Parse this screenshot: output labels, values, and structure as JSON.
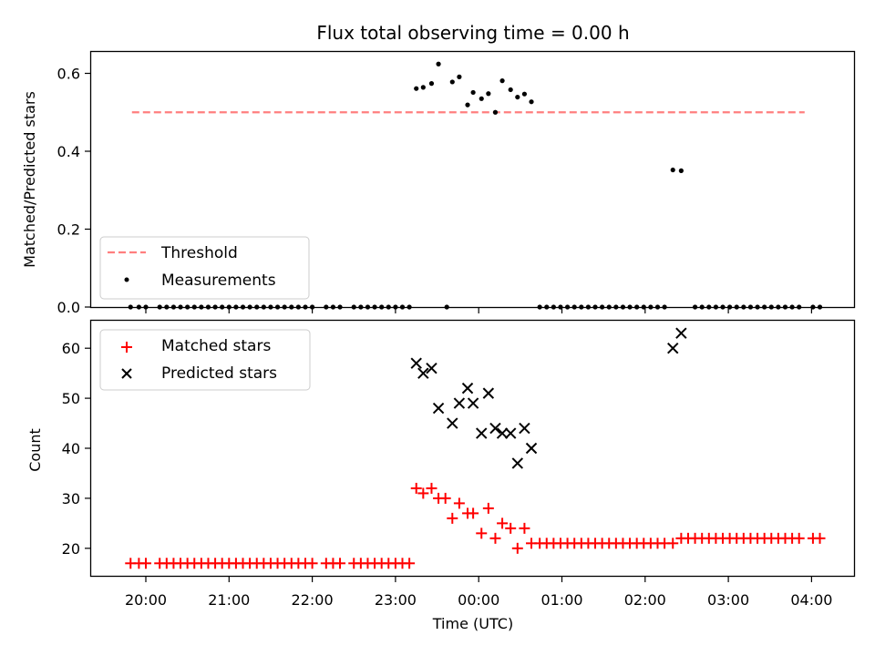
{
  "chart_data": [
    {
      "type": "scatter",
      "title": "Flux total observing time = 0.00 h",
      "xlabel": "",
      "ylabel": "Matched/Predicted stars",
      "ylim": [
        0.0,
        0.655
      ],
      "y_ticks": [
        0.0,
        0.2,
        0.4,
        0.6
      ],
      "y_tick_labels": [
        "0.0",
        "0.2",
        "0.4",
        "0.6"
      ],
      "legend_position": "lower-left",
      "threshold": {
        "name": "Threshold",
        "value": 0.5,
        "color": "#ff7f7f",
        "x_start": "19:50",
        "x_end": "03:55"
      },
      "measurements": {
        "name": "Measurements",
        "color": "#000000",
        "points": [
          {
            "x": "23:15",
            "y": 0.561
          },
          {
            "x": "23:20",
            "y": 0.564
          },
          {
            "x": "23:26",
            "y": 0.574
          },
          {
            "x": "23:31",
            "y": 0.624
          },
          {
            "x": "23:41",
            "y": 0.578
          },
          {
            "x": "23:46",
            "y": 0.591
          },
          {
            "x": "23:52",
            "y": 0.519
          },
          {
            "x": "23:56",
            "y": 0.551
          },
          {
            "x": "00:02",
            "y": 0.535
          },
          {
            "x": "00:07",
            "y": 0.548
          },
          {
            "x": "00:12",
            "y": 0.5
          },
          {
            "x": "00:17",
            "y": 0.581
          },
          {
            "x": "00:23",
            "y": 0.558
          },
          {
            "x": "00:28",
            "y": 0.539
          },
          {
            "x": "00:33",
            "y": 0.547
          },
          {
            "x": "00:38",
            "y": 0.527
          },
          {
            "x": "02:20",
            "y": 0.352
          },
          {
            "x": "02:26",
            "y": 0.35
          },
          {
            "x": "19:49",
            "y": 0.0
          },
          {
            "x": "19:55",
            "y": 0.0
          },
          {
            "x": "20:00",
            "y": 0.0
          },
          {
            "x": "20:10",
            "y": 0.0
          },
          {
            "x": "20:15",
            "y": 0.0
          },
          {
            "x": "20:20",
            "y": 0.0
          },
          {
            "x": "20:25",
            "y": 0.0
          },
          {
            "x": "20:30",
            "y": 0.0
          },
          {
            "x": "20:35",
            "y": 0.0
          },
          {
            "x": "20:40",
            "y": 0.0
          },
          {
            "x": "20:45",
            "y": 0.0
          },
          {
            "x": "20:50",
            "y": 0.0
          },
          {
            "x": "20:55",
            "y": 0.0
          },
          {
            "x": "21:00",
            "y": 0.0
          },
          {
            "x": "21:05",
            "y": 0.0
          },
          {
            "x": "21:10",
            "y": 0.0
          },
          {
            "x": "21:15",
            "y": 0.0
          },
          {
            "x": "21:20",
            "y": 0.0
          },
          {
            "x": "21:25",
            "y": 0.0
          },
          {
            "x": "21:30",
            "y": 0.0
          },
          {
            "x": "21:35",
            "y": 0.0
          },
          {
            "x": "21:40",
            "y": 0.0
          },
          {
            "x": "21:45",
            "y": 0.0
          },
          {
            "x": "21:50",
            "y": 0.0
          },
          {
            "x": "21:55",
            "y": 0.0
          },
          {
            "x": "22:00",
            "y": 0.0
          },
          {
            "x": "22:10",
            "y": 0.0
          },
          {
            "x": "22:15",
            "y": 0.0
          },
          {
            "x": "22:20",
            "y": 0.0
          },
          {
            "x": "22:30",
            "y": 0.0
          },
          {
            "x": "22:35",
            "y": 0.0
          },
          {
            "x": "22:40",
            "y": 0.0
          },
          {
            "x": "22:45",
            "y": 0.0
          },
          {
            "x": "22:50",
            "y": 0.0
          },
          {
            "x": "22:55",
            "y": 0.0
          },
          {
            "x": "23:00",
            "y": 0.0
          },
          {
            "x": "23:05",
            "y": 0.0
          },
          {
            "x": "23:10",
            "y": 0.0
          },
          {
            "x": "23:37",
            "y": 0.0
          },
          {
            "x": "00:44",
            "y": 0.0
          },
          {
            "x": "00:49",
            "y": 0.0
          },
          {
            "x": "00:54",
            "y": 0.0
          },
          {
            "x": "00:59",
            "y": 0.0
          },
          {
            "x": "01:04",
            "y": 0.0
          },
          {
            "x": "01:09",
            "y": 0.0
          },
          {
            "x": "01:14",
            "y": 0.0
          },
          {
            "x": "01:19",
            "y": 0.0
          },
          {
            "x": "01:24",
            "y": 0.0
          },
          {
            "x": "01:29",
            "y": 0.0
          },
          {
            "x": "01:34",
            "y": 0.0
          },
          {
            "x": "01:39",
            "y": 0.0
          },
          {
            "x": "01:44",
            "y": 0.0
          },
          {
            "x": "01:49",
            "y": 0.0
          },
          {
            "x": "01:54",
            "y": 0.0
          },
          {
            "x": "01:59",
            "y": 0.0
          },
          {
            "x": "02:04",
            "y": 0.0
          },
          {
            "x": "02:09",
            "y": 0.0
          },
          {
            "x": "02:14",
            "y": 0.0
          },
          {
            "x": "02:36",
            "y": 0.0
          },
          {
            "x": "02:41",
            "y": 0.0
          },
          {
            "x": "02:46",
            "y": 0.0
          },
          {
            "x": "02:51",
            "y": 0.0
          },
          {
            "x": "02:56",
            "y": 0.0
          },
          {
            "x": "03:01",
            "y": 0.0
          },
          {
            "x": "03:06",
            "y": 0.0
          },
          {
            "x": "03:11",
            "y": 0.0
          },
          {
            "x": "03:16",
            "y": 0.0
          },
          {
            "x": "03:21",
            "y": 0.0
          },
          {
            "x": "03:26",
            "y": 0.0
          },
          {
            "x": "03:31",
            "y": 0.0
          },
          {
            "x": "03:36",
            "y": 0.0
          },
          {
            "x": "03:41",
            "y": 0.0
          },
          {
            "x": "03:46",
            "y": 0.0
          },
          {
            "x": "03:51",
            "y": 0.0
          },
          {
            "x": "04:01",
            "y": 0.0
          },
          {
            "x": "04:06",
            "y": 0.0
          }
        ]
      }
    },
    {
      "type": "scatter",
      "xlabel": "Time (UTC)",
      "ylabel": "Count",
      "ylim": [
        14.5,
        65.5
      ],
      "y_ticks": [
        20,
        30,
        40,
        50,
        60
      ],
      "y_tick_labels": [
        "20",
        "30",
        "40",
        "50",
        "60"
      ],
      "x_ticks": [
        "20:00",
        "21:00",
        "22:00",
        "23:00",
        "00:00",
        "01:00",
        "02:00",
        "03:00",
        "04:00"
      ],
      "legend_position": "upper-left",
      "series": [
        {
          "name": "Matched stars",
          "marker": "plus",
          "color": "#ff0000",
          "points": [
            {
              "x": "19:49",
              "y": 17
            },
            {
              "x": "19:55",
              "y": 17
            },
            {
              "x": "20:00",
              "y": 17
            },
            {
              "x": "20:10",
              "y": 17
            },
            {
              "x": "20:15",
              "y": 17
            },
            {
              "x": "20:20",
              "y": 17
            },
            {
              "x": "20:25",
              "y": 17
            },
            {
              "x": "20:30",
              "y": 17
            },
            {
              "x": "20:35",
              "y": 17
            },
            {
              "x": "20:40",
              "y": 17
            },
            {
              "x": "20:45",
              "y": 17
            },
            {
              "x": "20:50",
              "y": 17
            },
            {
              "x": "20:55",
              "y": 17
            },
            {
              "x": "21:00",
              "y": 17
            },
            {
              "x": "21:05",
              "y": 17
            },
            {
              "x": "21:10",
              "y": 17
            },
            {
              "x": "21:15",
              "y": 17
            },
            {
              "x": "21:20",
              "y": 17
            },
            {
              "x": "21:25",
              "y": 17
            },
            {
              "x": "21:30",
              "y": 17
            },
            {
              "x": "21:35",
              "y": 17
            },
            {
              "x": "21:40",
              "y": 17
            },
            {
              "x": "21:45",
              "y": 17
            },
            {
              "x": "21:50",
              "y": 17
            },
            {
              "x": "21:55",
              "y": 17
            },
            {
              "x": "22:00",
              "y": 17
            },
            {
              "x": "22:10",
              "y": 17
            },
            {
              "x": "22:15",
              "y": 17
            },
            {
              "x": "22:20",
              "y": 17
            },
            {
              "x": "22:30",
              "y": 17
            },
            {
              "x": "22:35",
              "y": 17
            },
            {
              "x": "22:40",
              "y": 17
            },
            {
              "x": "22:45",
              "y": 17
            },
            {
              "x": "22:50",
              "y": 17
            },
            {
              "x": "22:55",
              "y": 17
            },
            {
              "x": "23:00",
              "y": 17
            },
            {
              "x": "23:05",
              "y": 17
            },
            {
              "x": "23:10",
              "y": 17
            },
            {
              "x": "23:15",
              "y": 32
            },
            {
              "x": "23:20",
              "y": 31
            },
            {
              "x": "23:26",
              "y": 32
            },
            {
              "x": "23:31",
              "y": 30
            },
            {
              "x": "23:36",
              "y": 30
            },
            {
              "x": "23:41",
              "y": 26
            },
            {
              "x": "23:46",
              "y": 29
            },
            {
              "x": "23:52",
              "y": 27
            },
            {
              "x": "23:56",
              "y": 27
            },
            {
              "x": "00:02",
              "y": 23
            },
            {
              "x": "00:07",
              "y": 28
            },
            {
              "x": "00:12",
              "y": 22
            },
            {
              "x": "00:17",
              "y": 25
            },
            {
              "x": "00:23",
              "y": 24
            },
            {
              "x": "00:28",
              "y": 20
            },
            {
              "x": "00:33",
              "y": 24
            },
            {
              "x": "00:38",
              "y": 21
            },
            {
              "x": "00:44",
              "y": 21
            },
            {
              "x": "00:49",
              "y": 21
            },
            {
              "x": "00:54",
              "y": 21
            },
            {
              "x": "00:59",
              "y": 21
            },
            {
              "x": "01:04",
              "y": 21
            },
            {
              "x": "01:09",
              "y": 21
            },
            {
              "x": "01:14",
              "y": 21
            },
            {
              "x": "01:19",
              "y": 21
            },
            {
              "x": "01:24",
              "y": 21
            },
            {
              "x": "01:29",
              "y": 21
            },
            {
              "x": "01:34",
              "y": 21
            },
            {
              "x": "01:39",
              "y": 21
            },
            {
              "x": "01:44",
              "y": 21
            },
            {
              "x": "01:49",
              "y": 21
            },
            {
              "x": "01:54",
              "y": 21
            },
            {
              "x": "01:59",
              "y": 21
            },
            {
              "x": "02:04",
              "y": 21
            },
            {
              "x": "02:09",
              "y": 21
            },
            {
              "x": "02:14",
              "y": 21
            },
            {
              "x": "02:20",
              "y": 21
            },
            {
              "x": "02:26",
              "y": 22
            },
            {
              "x": "02:31",
              "y": 22
            },
            {
              "x": "02:36",
              "y": 22
            },
            {
              "x": "02:41",
              "y": 22
            },
            {
              "x": "02:46",
              "y": 22
            },
            {
              "x": "02:51",
              "y": 22
            },
            {
              "x": "02:56",
              "y": 22
            },
            {
              "x": "03:01",
              "y": 22
            },
            {
              "x": "03:06",
              "y": 22
            },
            {
              "x": "03:11",
              "y": 22
            },
            {
              "x": "03:16",
              "y": 22
            },
            {
              "x": "03:21",
              "y": 22
            },
            {
              "x": "03:26",
              "y": 22
            },
            {
              "x": "03:31",
              "y": 22
            },
            {
              "x": "03:36",
              "y": 22
            },
            {
              "x": "03:41",
              "y": 22
            },
            {
              "x": "03:46",
              "y": 22
            },
            {
              "x": "03:51",
              "y": 22
            },
            {
              "x": "04:01",
              "y": 22
            },
            {
              "x": "04:06",
              "y": 22
            }
          ]
        },
        {
          "name": "Predicted stars",
          "marker": "x",
          "color": "#000000",
          "points": [
            {
              "x": "23:15",
              "y": 57
            },
            {
              "x": "23:20",
              "y": 55
            },
            {
              "x": "23:26",
              "y": 56
            },
            {
              "x": "23:31",
              "y": 48
            },
            {
              "x": "23:41",
              "y": 45
            },
            {
              "x": "23:46",
              "y": 49
            },
            {
              "x": "23:52",
              "y": 52
            },
            {
              "x": "23:56",
              "y": 49
            },
            {
              "x": "00:02",
              "y": 43
            },
            {
              "x": "00:07",
              "y": 51
            },
            {
              "x": "00:12",
              "y": 44
            },
            {
              "x": "00:17",
              "y": 43
            },
            {
              "x": "00:23",
              "y": 43
            },
            {
              "x": "00:28",
              "y": 37
            },
            {
              "x": "00:33",
              "y": 44
            },
            {
              "x": "00:38",
              "y": 40
            },
            {
              "x": "02:20",
              "y": 60
            },
            {
              "x": "02:26",
              "y": 63
            }
          ]
        }
      ]
    }
  ]
}
